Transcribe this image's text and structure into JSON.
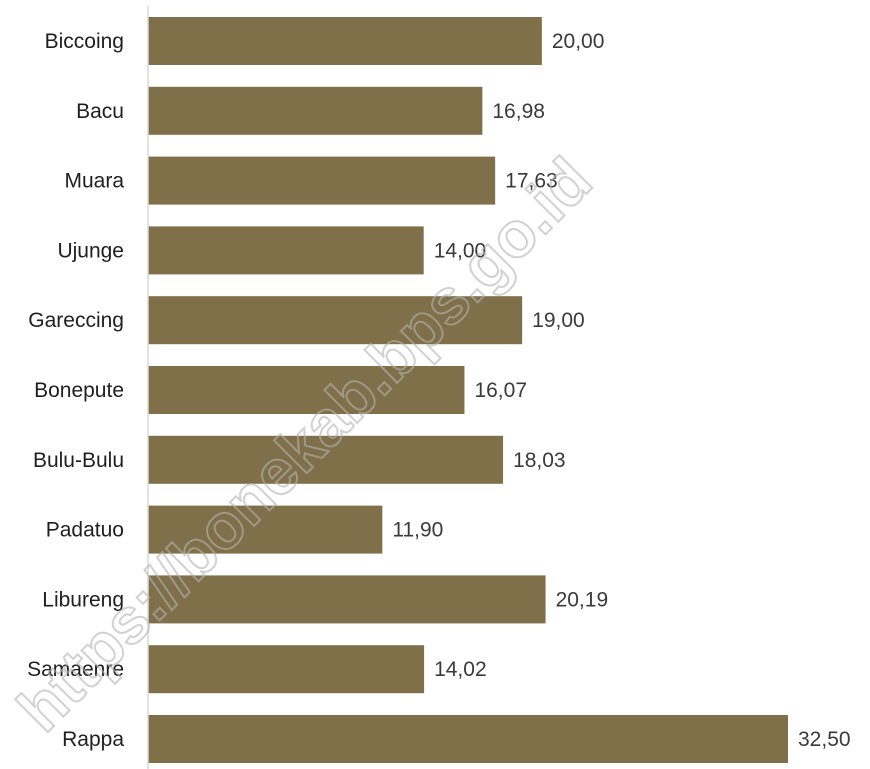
{
  "chart_data": {
    "type": "bar",
    "orientation": "horizontal",
    "categories": [
      "Biccoing",
      "Bacu",
      "Muara",
      "Ujunge",
      "Gareccing",
      "Bonepute",
      "Bulu-Bulu",
      "Padatuo",
      "Libureng",
      "Samaenre",
      "Rappa"
    ],
    "values": [
      20.0,
      16.98,
      17.63,
      14.0,
      19.0,
      16.07,
      18.03,
      11.9,
      20.19,
      14.02,
      32.5
    ],
    "value_labels": [
      "20,00",
      "16,98",
      "17,63",
      "14,00",
      "19,00",
      "16,07",
      "18,03",
      "11,90",
      "20,19",
      "14,02",
      "32,50"
    ],
    "title": "",
    "xlabel": "",
    "ylabel": "",
    "xlim": [
      0,
      32.5
    ],
    "grid": false,
    "legend": "none",
    "bar_color": "#7f7049",
    "axis_color": "#d9d9d9"
  },
  "watermark": {
    "text": "https://bonekab.bps.go.id"
  }
}
